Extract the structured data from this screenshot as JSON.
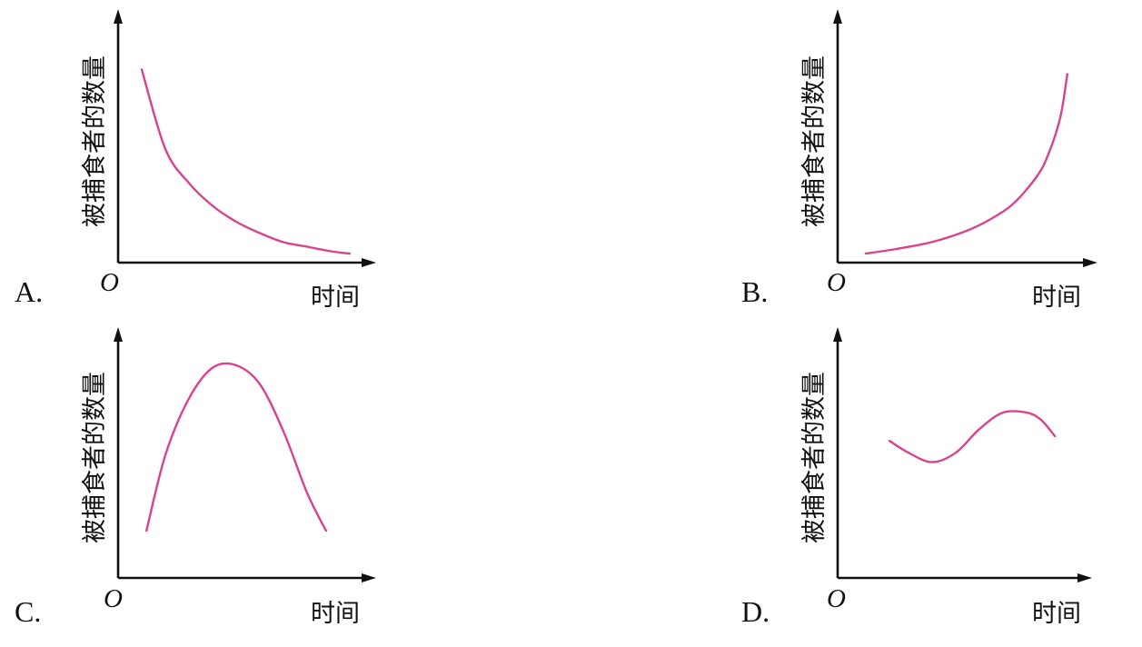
{
  "chart_data": [
    {
      "type": "line",
      "panel": "A.",
      "origin": "O",
      "xlabel": "时间",
      "ylabel": "被捕食者的数量",
      "x": [
        0.1,
        0.2,
        0.3,
        0.4,
        0.5,
        0.6,
        0.7,
        0.8,
        0.9,
        0.98
      ],
      "y": [
        0.85,
        0.5,
        0.35,
        0.25,
        0.18,
        0.13,
        0.09,
        0.07,
        0.05,
        0.04
      ],
      "line_color": "#d9438d"
    },
    {
      "type": "line",
      "panel": "B.",
      "origin": "O",
      "xlabel": "时间",
      "ylabel": "被捕食者的数量",
      "x": [
        0.12,
        0.25,
        0.4,
        0.55,
        0.65,
        0.75,
        0.85,
        0.9,
        0.95,
        0.98
      ],
      "y": [
        0.04,
        0.06,
        0.09,
        0.14,
        0.19,
        0.26,
        0.38,
        0.48,
        0.64,
        0.83
      ],
      "line_color": "#d9438d"
    },
    {
      "type": "line",
      "panel": "C.",
      "origin": "O",
      "xlabel": "时间",
      "ylabel": "被捕食者的数量",
      "x": [
        0.12,
        0.2,
        0.3,
        0.4,
        0.5,
        0.6,
        0.7,
        0.8,
        0.88
      ],
      "y": [
        0.2,
        0.52,
        0.76,
        0.89,
        0.9,
        0.82,
        0.62,
        0.36,
        0.2
      ],
      "line_color": "#d9438d"
    },
    {
      "type": "line",
      "panel": "D.",
      "origin": "O",
      "xlabel": "时间",
      "ylabel": "被捕食者的数量",
      "x": [
        0.22,
        0.3,
        0.4,
        0.5,
        0.6,
        0.7,
        0.8,
        0.86,
        0.92
      ],
      "y": [
        0.58,
        0.53,
        0.49,
        0.53,
        0.63,
        0.7,
        0.7,
        0.67,
        0.6
      ],
      "line_color": "#d9438d"
    }
  ]
}
